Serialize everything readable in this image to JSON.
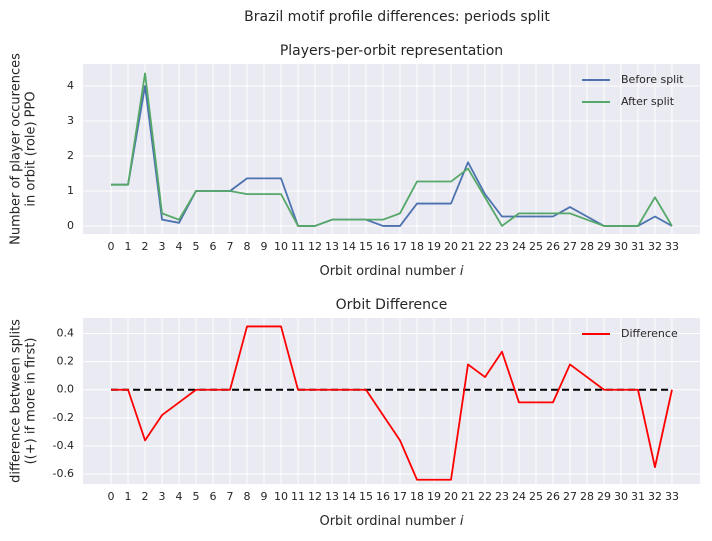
{
  "title": "Brazil motif profile differences: periods split",
  "chart_data": [
    {
      "type": "line",
      "title": "Players-per-orbit representation",
      "xlabel": "Orbit ordinal number",
      "xlabel_var": "i",
      "ylabel": [
        "Number of player occurences",
        "in orbit (role) PPO"
      ],
      "x": [
        0,
        1,
        2,
        3,
        4,
        5,
        6,
        7,
        8,
        9,
        10,
        11,
        12,
        13,
        14,
        15,
        16,
        17,
        18,
        19,
        20,
        21,
        22,
        23,
        24,
        25,
        26,
        27,
        28,
        29,
        30,
        31,
        32,
        33
      ],
      "xlim": [
        -1.65,
        34.65
      ],
      "xticks": [
        0,
        1,
        2,
        3,
        4,
        5,
        6,
        7,
        8,
        9,
        10,
        11,
        12,
        13,
        14,
        15,
        16,
        17,
        18,
        19,
        20,
        21,
        22,
        23,
        24,
        25,
        26,
        27,
        28,
        29,
        30,
        31,
        32,
        33
      ],
      "ylim": [
        -0.23,
        4.63
      ],
      "yticks": [
        0,
        1,
        2,
        3,
        4
      ],
      "grid": true,
      "legend": "upper right",
      "series": [
        {
          "name": "Before split",
          "color": "#4c72b0",
          "values": [
            1.18,
            1.18,
            4.0,
            0.18,
            0.09,
            1.0,
            1.0,
            1.0,
            1.36,
            1.36,
            1.36,
            0,
            0,
            0.18,
            0.18,
            0.18,
            0,
            0,
            0.64,
            0.64,
            0.64,
            1.82,
            0.91,
            0.27,
            0.27,
            0.27,
            0.27,
            0.54,
            0.27,
            0,
            0,
            0,
            0.27,
            0
          ]
        },
        {
          "name": "After split",
          "color": "#55a868",
          "values": [
            1.18,
            1.18,
            4.36,
            0.36,
            0.18,
            1.0,
            1.0,
            1.0,
            0.91,
            0.91,
            0.91,
            0,
            0,
            0.18,
            0.18,
            0.18,
            0.18,
            0.36,
            1.27,
            1.27,
            1.27,
            1.64,
            0.82,
            0,
            0.36,
            0.36,
            0.36,
            0.36,
            0.18,
            0,
            0,
            0,
            0.82,
            0
          ]
        }
      ]
    },
    {
      "type": "line",
      "title": "Orbit Difference",
      "xlabel": "Orbit ordinal number",
      "xlabel_var": "i",
      "ylabel": [
        "difference between splits",
        "((+) if more in first)"
      ],
      "x": [
        0,
        1,
        2,
        3,
        4,
        5,
        6,
        7,
        8,
        9,
        10,
        11,
        12,
        13,
        14,
        15,
        16,
        17,
        18,
        19,
        20,
        21,
        22,
        23,
        24,
        25,
        26,
        27,
        28,
        29,
        30,
        31,
        32,
        33
      ],
      "xlim": [
        -1.65,
        34.65
      ],
      "xticks": [
        0,
        1,
        2,
        3,
        4,
        5,
        6,
        7,
        8,
        9,
        10,
        11,
        12,
        13,
        14,
        15,
        16,
        17,
        18,
        19,
        20,
        21,
        22,
        23,
        24,
        25,
        26,
        27,
        28,
        29,
        30,
        31,
        32,
        33
      ],
      "ylim": [
        -0.67,
        0.51
      ],
      "yticks": [
        -0.6,
        -0.4,
        -0.2,
        {
          "value": 0,
          "label": "0.0"
        },
        0.2,
        0.4
      ],
      "grid": true,
      "legend": "upper right",
      "hline": {
        "value": 0,
        "color": "black",
        "style": "dashed"
      },
      "series": [
        {
          "name": "Difference",
          "color": "red",
          "values": [
            0,
            0,
            -0.36,
            -0.18,
            -0.09,
            0,
            0,
            0,
            0.45,
            0.45,
            0.45,
            0,
            0,
            0,
            0,
            0,
            -0.18,
            -0.36,
            -0.64,
            -0.64,
            -0.64,
            0.18,
            0.09,
            0.27,
            -0.09,
            -0.09,
            -0.09,
            0.18,
            0.09,
            0,
            0,
            0,
            -0.55,
            0
          ]
        }
      ]
    }
  ]
}
